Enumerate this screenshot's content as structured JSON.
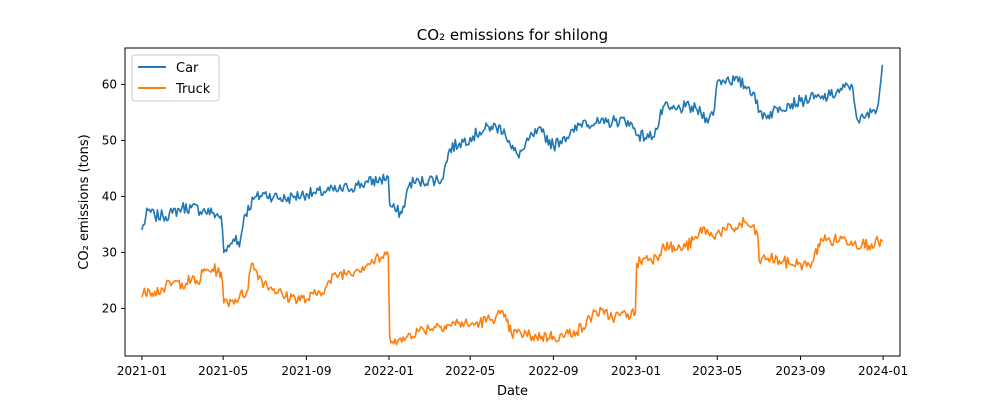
{
  "chart_data": {
    "type": "line",
    "title": "CO₂ emissions for shilong",
    "xlabel": "Date",
    "ylabel": "CO₂ emissions (tons)",
    "xlim": [
      "2020-12-07",
      "2024-01-26"
    ],
    "ylim": [
      11.5,
      66.5
    ],
    "x_ticks": [
      "2021-01",
      "2021-05",
      "2021-09",
      "2022-01",
      "2022-05",
      "2022-09",
      "2023-01",
      "2023-05",
      "2023-09",
      "2024-01"
    ],
    "y_ticks": [
      20,
      30,
      40,
      50,
      60
    ],
    "legend": {
      "position": "top-left"
    },
    "grid": false,
    "colors": {
      "car": "#1f77b4",
      "truck": "#ff7f0e"
    },
    "series": [
      {
        "name": "Car",
        "color": "#1f77b4",
        "points": [
          [
            "2021-01-01",
            34.0
          ],
          [
            "2021-01-10",
            37.5
          ],
          [
            "2021-01-20",
            36.5
          ],
          [
            "2021-02-01",
            36.5
          ],
          [
            "2021-02-15",
            37.0
          ],
          [
            "2021-03-01",
            38.0
          ],
          [
            "2021-03-15",
            38.0
          ],
          [
            "2021-04-01",
            37.5
          ],
          [
            "2021-04-15",
            37.0
          ],
          [
            "2021-04-28",
            36.5
          ],
          [
            "2021-05-02",
            30.0
          ],
          [
            "2021-05-10",
            31.0
          ],
          [
            "2021-05-20",
            33.0
          ],
          [
            "2021-05-25",
            31.0
          ],
          [
            "2021-06-01",
            36.5
          ],
          [
            "2021-06-15",
            39.5
          ],
          [
            "2021-07-01",
            40.5
          ],
          [
            "2021-07-15",
            40.0
          ],
          [
            "2021-08-01",
            39.5
          ],
          [
            "2021-08-15",
            40.0
          ],
          [
            "2021-09-01",
            40.5
          ],
          [
            "2021-09-15",
            40.5
          ],
          [
            "2021-10-01",
            41.0
          ],
          [
            "2021-10-15",
            41.0
          ],
          [
            "2021-11-01",
            41.5
          ],
          [
            "2021-11-15",
            42.0
          ],
          [
            "2021-12-01",
            42.5
          ],
          [
            "2021-12-20",
            43.0
          ],
          [
            "2021-12-31",
            43.5
          ],
          [
            "2022-01-02",
            38.5
          ],
          [
            "2022-01-10",
            37.5
          ],
          [
            "2022-01-20",
            37.0
          ],
          [
            "2022-02-01",
            42.5
          ],
          [
            "2022-02-15",
            42.5
          ],
          [
            "2022-03-01",
            43.0
          ],
          [
            "2022-03-20",
            43.0
          ],
          [
            "2022-04-01",
            48.5
          ],
          [
            "2022-04-15",
            49.5
          ],
          [
            "2022-05-01",
            50.5
          ],
          [
            "2022-05-15",
            51.5
          ],
          [
            "2022-06-01",
            52.5
          ],
          [
            "2022-06-20",
            52.0
          ],
          [
            "2022-07-01",
            48.5
          ],
          [
            "2022-07-10",
            47.5
          ],
          [
            "2022-07-20",
            48.5
          ],
          [
            "2022-08-01",
            51.0
          ],
          [
            "2022-08-15",
            51.5
          ],
          [
            "2022-09-01",
            49.0
          ],
          [
            "2022-09-15",
            50.5
          ],
          [
            "2022-10-01",
            51.5
          ],
          [
            "2022-10-15",
            53.5
          ],
          [
            "2022-11-01",
            53.0
          ],
          [
            "2022-11-15",
            53.0
          ],
          [
            "2022-12-01",
            53.5
          ],
          [
            "2022-12-20",
            53.5
          ],
          [
            "2023-01-05",
            51.0
          ],
          [
            "2023-01-20",
            50.5
          ],
          [
            "2023-02-01",
            52.0
          ],
          [
            "2023-02-10",
            56.0
          ],
          [
            "2023-02-20",
            55.5
          ],
          [
            "2023-03-01",
            55.5
          ],
          [
            "2023-03-15",
            56.0
          ],
          [
            "2023-04-01",
            55.5
          ],
          [
            "2023-04-15",
            54.0
          ],
          [
            "2023-04-25",
            54.5
          ],
          [
            "2023-05-01",
            60.5
          ],
          [
            "2023-05-15",
            61.0
          ],
          [
            "2023-06-01",
            60.5
          ],
          [
            "2023-06-15",
            59.5
          ],
          [
            "2023-06-25",
            58.5
          ],
          [
            "2023-07-01",
            55.0
          ],
          [
            "2023-07-15",
            54.5
          ],
          [
            "2023-08-01",
            56.0
          ],
          [
            "2023-08-15",
            56.5
          ],
          [
            "2023-09-01",
            57.0
          ],
          [
            "2023-09-15",
            57.5
          ],
          [
            "2023-10-01",
            57.5
          ],
          [
            "2023-10-15",
            58.0
          ],
          [
            "2023-11-01",
            59.0
          ],
          [
            "2023-11-15",
            60.0
          ],
          [
            "2023-11-25",
            53.5
          ],
          [
            "2023-12-05",
            54.0
          ],
          [
            "2023-12-15",
            55.0
          ],
          [
            "2023-12-25",
            56.5
          ],
          [
            "2023-12-31",
            63.5
          ]
        ]
      },
      {
        "name": "Truck",
        "color": "#ff7f0e",
        "points": [
          [
            "2021-01-01",
            22.0
          ],
          [
            "2021-01-10",
            23.5
          ],
          [
            "2021-01-20",
            23.0
          ],
          [
            "2021-02-01",
            23.5
          ],
          [
            "2021-02-15",
            24.5
          ],
          [
            "2021-03-01",
            24.5
          ],
          [
            "2021-03-15",
            25.0
          ],
          [
            "2021-03-25",
            24.5
          ],
          [
            "2021-04-01",
            26.5
          ],
          [
            "2021-04-15",
            27.0
          ],
          [
            "2021-04-28",
            26.5
          ],
          [
            "2021-05-02",
            21.0
          ],
          [
            "2021-05-15",
            21.5
          ],
          [
            "2021-05-25",
            22.0
          ],
          [
            "2021-06-05",
            23.0
          ],
          [
            "2021-06-12",
            28.0
          ],
          [
            "2021-06-20",
            26.5
          ],
          [
            "2021-07-01",
            24.5
          ],
          [
            "2021-07-15",
            23.5
          ],
          [
            "2021-08-01",
            22.0
          ],
          [
            "2021-08-15",
            22.0
          ],
          [
            "2021-09-01",
            21.5
          ],
          [
            "2021-09-15",
            22.5
          ],
          [
            "2021-10-01",
            24.0
          ],
          [
            "2021-10-15",
            26.0
          ],
          [
            "2021-11-01",
            26.5
          ],
          [
            "2021-11-15",
            27.0
          ],
          [
            "2021-12-01",
            28.0
          ],
          [
            "2021-12-20",
            29.0
          ],
          [
            "2021-12-31",
            29.5
          ],
          [
            "2022-01-02",
            15.0
          ],
          [
            "2022-01-10",
            14.5
          ],
          [
            "2022-01-20",
            14.0
          ],
          [
            "2022-02-01",
            15.5
          ],
          [
            "2022-02-15",
            16.0
          ],
          [
            "2022-03-01",
            16.5
          ],
          [
            "2022-03-15",
            17.0
          ],
          [
            "2022-04-01",
            17.0
          ],
          [
            "2022-04-15",
            17.5
          ],
          [
            "2022-05-01",
            17.0
          ],
          [
            "2022-05-15",
            17.5
          ],
          [
            "2022-06-01",
            18.0
          ],
          [
            "2022-06-10",
            19.0
          ],
          [
            "2022-06-20",
            18.5
          ],
          [
            "2022-07-01",
            15.5
          ],
          [
            "2022-07-15",
            15.5
          ],
          [
            "2022-08-01",
            15.0
          ],
          [
            "2022-08-15",
            15.0
          ],
          [
            "2022-09-01",
            15.0
          ],
          [
            "2022-09-15",
            15.0
          ],
          [
            "2022-10-01",
            16.0
          ],
          [
            "2022-10-15",
            16.5
          ],
          [
            "2022-11-01",
            19.5
          ],
          [
            "2022-11-15",
            19.0
          ],
          [
            "2022-12-01",
            18.5
          ],
          [
            "2022-12-20",
            19.0
          ],
          [
            "2022-12-31",
            19.0
          ],
          [
            "2023-01-02",
            28.0
          ],
          [
            "2023-01-15",
            29.0
          ],
          [
            "2023-02-01",
            29.0
          ],
          [
            "2023-02-10",
            31.5
          ],
          [
            "2023-02-20",
            31.0
          ],
          [
            "2023-03-01",
            30.5
          ],
          [
            "2023-03-15",
            31.0
          ],
          [
            "2023-04-01",
            32.5
          ],
          [
            "2023-04-10",
            34.5
          ],
          [
            "2023-04-20",
            33.0
          ],
          [
            "2023-05-01",
            33.5
          ],
          [
            "2023-05-15",
            34.0
          ],
          [
            "2023-06-01",
            34.5
          ],
          [
            "2023-06-10",
            35.5
          ],
          [
            "2023-06-20",
            34.5
          ],
          [
            "2023-06-30",
            33.0
          ],
          [
            "2023-07-02",
            28.5
          ],
          [
            "2023-07-15",
            29.0
          ],
          [
            "2023-08-01",
            28.5
          ],
          [
            "2023-08-15",
            28.0
          ],
          [
            "2023-09-01",
            28.0
          ],
          [
            "2023-09-10",
            27.5
          ],
          [
            "2023-09-20",
            28.5
          ],
          [
            "2023-10-01",
            32.5
          ],
          [
            "2023-10-15",
            32.0
          ],
          [
            "2023-11-01",
            32.5
          ],
          [
            "2023-11-15",
            32.0
          ],
          [
            "2023-12-01",
            31.5
          ],
          [
            "2023-12-15",
            31.5
          ],
          [
            "2023-12-31",
            32.0
          ]
        ]
      }
    ]
  }
}
